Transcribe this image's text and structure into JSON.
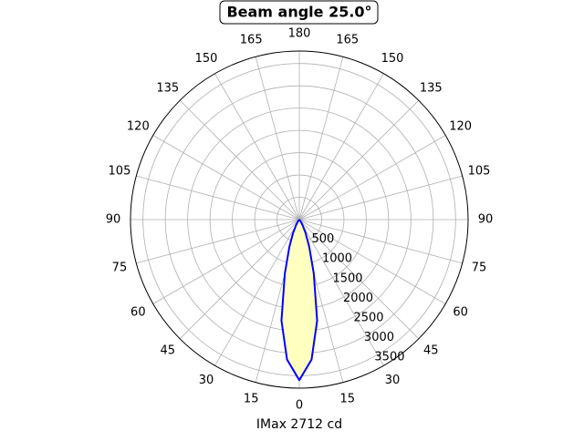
{
  "chart_data": {
    "type": "polar",
    "title": "Beam angle 25.0°",
    "xlabel": "IMax 2712 cd",
    "x": [
      -45,
      -40,
      -35,
      -30,
      -25,
      -20,
      -15,
      -10,
      -5,
      0,
      5,
      10,
      15,
      20,
      25,
      30,
      35,
      40,
      45
    ],
    "series": [
      {
        "color": "#0000ff",
        "fill": "#ffffc0",
        "values": [
          0,
          20,
          60,
          150,
          330,
          650,
          1250,
          2300,
          3150,
          3600,
          3150,
          2300,
          1250,
          650,
          330,
          150,
          60,
          20,
          0
        ]
      }
    ],
    "xticks": [
      0,
      15,
      30,
      45,
      60,
      75,
      90,
      105,
      120,
      135,
      150,
      165,
      180,
      {
        "value": -15,
        "label": "15"
      },
      {
        "value": -30,
        "label": "30"
      },
      {
        "value": -45,
        "label": "45"
      },
      {
        "value": -60,
        "label": "60"
      },
      {
        "value": -75,
        "label": "75"
      },
      {
        "value": -90,
        "label": "90"
      },
      {
        "value": -105,
        "label": "105"
      },
      {
        "value": -120,
        "label": "120"
      },
      {
        "value": -135,
        "label": "135"
      },
      {
        "value": -150,
        "label": "150"
      },
      {
        "value": -165,
        "label": "165"
      }
    ],
    "ylim": [
      0,
      3780
    ],
    "yticks": [
      500,
      1000,
      1500,
      2000,
      2500,
      3000,
      3500
    ],
    "grid": true
  }
}
